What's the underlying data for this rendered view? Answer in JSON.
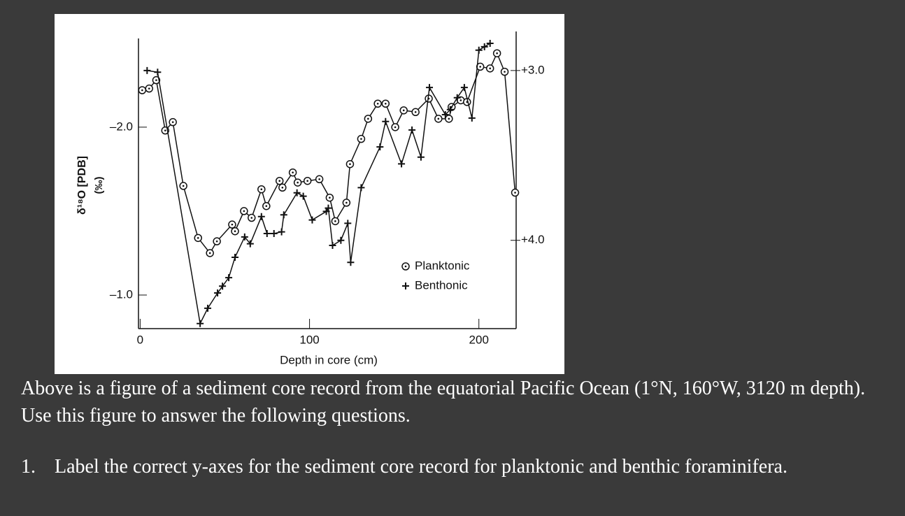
{
  "chart_data": {
    "type": "line",
    "x_label": "Depth in core (cm)",
    "y_label": "δ¹⁸O [PDB]",
    "y_unit": "(‰)",
    "xlim": [
      -1,
      222
    ],
    "xticks": [
      0,
      100,
      200
    ],
    "ylim": [
      -0.8,
      -2.57
    ],
    "yticks": [
      {
        "value": -2,
        "label": "–2.0"
      },
      {
        "value": -1,
        "label": "–1.0"
      }
    ],
    "y2lim": [
      4.52,
      2.77
    ],
    "y2ticks": [
      {
        "value": 3,
        "label": "+3.0"
      },
      {
        "value": 4,
        "label": "+4.0"
      }
    ],
    "series": [
      {
        "name": "Planktonic",
        "color": "#111111",
        "marker": "circle",
        "x": [
          1.2,
          5.3,
          9.5,
          14.8,
          19.3,
          25.5,
          34.2,
          41.2,
          45.3,
          54.3,
          56.0,
          61.3,
          65.8,
          71.6,
          74.5,
          82.3,
          84.0,
          90.1,
          93.0,
          98.8,
          105.8,
          111.9,
          115.2,
          121.8,
          123.9,
          130.5,
          134.6,
          140.3,
          144.9,
          150.6,
          155.6,
          162.6,
          170.4,
          176.1,
          182.3,
          183.9,
          189.3,
          193.0,
          200.8,
          206.6,
          210.7,
          215.2,
          221.4
        ],
        "values": [
          -2.22,
          -2.23,
          -2.28,
          -1.98,
          -2.03,
          -1.65,
          -1.34,
          -1.25,
          -1.32,
          -1.42,
          -1.38,
          -1.5,
          -1.46,
          -1.63,
          -1.53,
          -1.68,
          -1.64,
          -1.73,
          -1.67,
          -1.68,
          -1.69,
          -1.58,
          -1.44,
          -1.55,
          -1.78,
          -1.93,
          -2.05,
          -2.14,
          -2.14,
          -2.0,
          -2.1,
          -2.09,
          -2.17,
          -2.05,
          -2.05,
          -2.12,
          -2.16,
          -2.15,
          -2.36,
          -2.35,
          -2.44,
          -2.33,
          -1.61
        ]
      },
      {
        "name": "Benthonic",
        "color": "#111111",
        "marker": "plus",
        "axis": "y2",
        "x": [
          4.1,
          10.3,
          35.4,
          39.9,
          45.7,
          48.6,
          52.3,
          56.0,
          61.7,
          65.0,
          71.6,
          74.9,
          79.0,
          83.5,
          84.8,
          92.6,
          96.3,
          101.6,
          109.9,
          111.1,
          113.6,
          118.5,
          122.6,
          124.3,
          130.5,
          141.6,
          144.9,
          154.3,
          160.5,
          165.8,
          170.8,
          180.2,
          183.1,
          187.2,
          191.4,
          195.9,
          200.0,
          203.3,
          206.6
        ],
        "values": [
          3.0,
          3.01,
          4.49,
          4.4,
          4.31,
          4.27,
          4.22,
          4.1,
          3.98,
          4.02,
          3.86,
          3.96,
          3.96,
          3.95,
          3.85,
          3.72,
          3.74,
          3.88,
          3.83,
          3.81,
          4.03,
          4.0,
          3.9,
          4.13,
          3.69,
          3.45,
          3.3,
          3.55,
          3.35,
          3.51,
          3.1,
          3.26,
          3.23,
          3.16,
          3.1,
          3.28,
          2.88,
          2.86,
          2.84
        ]
      }
    ]
  },
  "text": {
    "intro": "Above is a figure of a sediment core record from the equatorial Pacific Ocean (1°N, 160°W, 3120 m depth).   Use this figure to answer the following questions.",
    "questions": [
      {
        "number": "1.",
        "text": "Label the correct y-axes for the sediment core record for planktonic and benthic foraminifera."
      }
    ]
  }
}
